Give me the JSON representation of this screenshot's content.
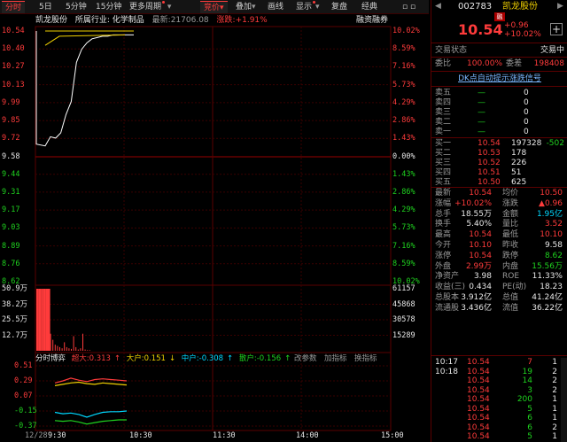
{
  "toolbar": {
    "tabs": [
      "分时",
      "5日",
      "5分钟",
      "15分钟",
      "更多周期",
      "竞价",
      "叠加",
      "画线",
      "显示",
      "复盘",
      "经典"
    ]
  },
  "stock": {
    "name": "凯龙股份",
    "code": "002783",
    "industry": "所属行业: 化学制品",
    "latest": "最新:21706.08",
    "change": "涨跌:+1.91%",
    "link": "融资融券",
    "badge": "融",
    "price": "10.54",
    "delta": "+0.96",
    "pct": "+10.02%"
  },
  "price_axis": {
    "left": [
      "10.54",
      "10.40",
      "10.27",
      "10.13",
      "9.99",
      "9.85",
      "9.72",
      "9.58",
      "9.44",
      "9.31",
      "9.17",
      "9.03",
      "8.89",
      "8.76",
      "8.62"
    ],
    "right": [
      "10.02%",
      "8.59%",
      "7.16%",
      "5.73%",
      "4.29%",
      "2.86%",
      "1.43%",
      "0.00%",
      "1.43%",
      "2.86%",
      "4.29%",
      "5.73%",
      "7.16%",
      "8.59%",
      "10.02%"
    ]
  },
  "volume_axis": {
    "left": [
      "50.9万",
      "38.2万",
      "25.5万",
      "12.7万"
    ],
    "right": [
      "61157",
      "45868",
      "30578",
      "15289"
    ]
  },
  "indicator": {
    "tabs": [
      "分时博弈",
      "改参数",
      "加指标",
      "换指标"
    ],
    "super": "超大:0.313",
    "big": "大户:0.151",
    "mid": "中户:-0.308",
    "small": "散户:-0.156",
    "axis": [
      "0.51",
      "0.29",
      "0.07",
      "-0.15",
      "-0.37"
    ]
  },
  "time_axis": [
    "12/28",
    "9:30",
    "10:30",
    "11:30",
    "14:00",
    "15:00"
  ],
  "panel": {
    "status_label": "交易状态",
    "status_value": "交易中",
    "ratio_label": "委比",
    "ratio_value": "100.00%",
    "diff_label": "委差",
    "diff_value": "198408",
    "signal": "DK点自动提示涨跌信号",
    "asks": [
      {
        "label": "卖五",
        "price": "—",
        "vol": "0"
      },
      {
        "label": "卖四",
        "price": "—",
        "vol": "0"
      },
      {
        "label": "卖三",
        "price": "—",
        "vol": "0"
      },
      {
        "label": "卖二",
        "price": "—",
        "vol": "0"
      },
      {
        "label": "卖一",
        "price": "—",
        "vol": "0"
      }
    ],
    "bids": [
      {
        "label": "买一",
        "price": "10.54",
        "vol": "197328",
        "chg": "-502"
      },
      {
        "label": "买二",
        "price": "10.53",
        "vol": "178",
        "chg": ""
      },
      {
        "label": "买三",
        "price": "10.52",
        "vol": "226",
        "chg": ""
      },
      {
        "label": "买四",
        "price": "10.51",
        "vol": "51",
        "chg": ""
      },
      {
        "label": "买五",
        "price": "10.50",
        "vol": "625",
        "chg": ""
      }
    ],
    "stats": [
      {
        "l1": "最新",
        "v1": "10.54",
        "c1": "red",
        "l2": "均价",
        "v2": "10.50",
        "c2": "red"
      },
      {
        "l1": "涨幅",
        "v1": "+10.02%",
        "c1": "red",
        "l2": "涨跌",
        "v2": "▲0.96",
        "c2": "red"
      },
      {
        "l1": "总手",
        "v1": "18.55万",
        "c1": "white",
        "l2": "金额",
        "v2": "1.95亿",
        "c2": "cyan"
      },
      {
        "l1": "换手",
        "v1": "5.40%",
        "c1": "white",
        "l2": "量比",
        "v2": "3.52",
        "c2": "red"
      },
      {
        "l1": "最高",
        "v1": "10.54",
        "c1": "red",
        "l2": "最低",
        "v2": "10.10",
        "c2": "red"
      },
      {
        "l1": "今开",
        "v1": "10.10",
        "c1": "red",
        "l2": "昨收",
        "v2": "9.58",
        "c2": "white"
      },
      {
        "l1": "涨停",
        "v1": "10.54",
        "c1": "red",
        "l2": "跌停",
        "v2": "8.62",
        "c2": "green"
      },
      {
        "l1": "外盘",
        "v1": "2.99万",
        "c1": "red",
        "l2": "内盘",
        "v2": "15.56万",
        "c2": "green"
      },
      {
        "l1": "净资产",
        "v1": "3.98",
        "c1": "white",
        "l2": "ROE",
        "v2": "11.33%",
        "c2": "white"
      },
      {
        "l1": "收益(三)",
        "v1": "0.434",
        "c1": "white",
        "l2": "PE(动)",
        "v2": "18.23",
        "c2": "white"
      },
      {
        "l1": "总股本",
        "v1": "3.912亿",
        "c1": "white",
        "l2": "总值",
        "v2": "41.24亿",
        "c2": "white"
      },
      {
        "l1": "流通股",
        "v1": "3.436亿",
        "c1": "white",
        "l2": "流值",
        "v2": "36.22亿",
        "c2": "white"
      }
    ],
    "ticks": [
      {
        "time": "10:17",
        "price": "10.54",
        "vol": "7",
        "n": "1",
        "vc": "red"
      },
      {
        "time": "10:18",
        "price": "10.54",
        "vol": "19",
        "n": "2",
        "vc": "green"
      },
      {
        "time": "",
        "price": "10.54",
        "vol": "14",
        "n": "2",
        "vc": "green"
      },
      {
        "time": "",
        "price": "10.54",
        "vol": "3",
        "n": "2",
        "vc": "green"
      },
      {
        "time": "",
        "price": "10.54",
        "vol": "200",
        "n": "1",
        "vc": "green"
      },
      {
        "time": "",
        "price": "10.54",
        "vol": "5",
        "n": "1",
        "vc": "green"
      },
      {
        "time": "",
        "price": "10.54",
        "vol": "6",
        "n": "1",
        "vc": "green"
      },
      {
        "time": "",
        "price": "10.54",
        "vol": "6",
        "n": "2",
        "vc": "green"
      },
      {
        "time": "",
        "price": "10.54",
        "vol": "5",
        "n": "1",
        "vc": "green"
      }
    ]
  },
  "chart_data": {
    "type": "line",
    "series": [
      {
        "values": [
          9.66,
          9.73,
          9.72,
          9.76,
          9.9,
          10.0,
          10.3,
          10.4,
          10.45,
          10.48,
          10.49,
          10.5,
          10.5,
          10.51,
          10.51,
          10.51,
          10.51,
          10.51
        ]
      },
      {
        "values": [
          10.54,
          10.54,
          10.54,
          10.54,
          10.54,
          10.54,
          10.54,
          10.54,
          10.54,
          10.54,
          10.54,
          10.54,
          10.54,
          10.54,
          10.54,
          10.54,
          10.54,
          10.54
        ]
      }
    ],
    "ylim": [
      8.62,
      10.54
    ],
    "volume": [
      509000,
      509000,
      509000,
      509000,
      509000,
      509000,
      140000,
      90000,
      50000,
      40000,
      30000,
      20000,
      70000,
      30000,
      20000,
      15000,
      120000,
      30000,
      10000,
      20000,
      140000,
      10000,
      5000,
      5000
    ],
    "indicator_series": [
      {
        "values": [
          0.26,
          0.29,
          0.33,
          0.3,
          0.28,
          0.31,
          0.32,
          0.31,
          0.3,
          0.29
        ]
      },
      {
        "values": [
          0.22,
          0.24,
          0.26,
          0.27,
          0.25,
          0.24,
          0.26,
          0.25,
          0.24,
          0.23
        ]
      },
      {
        "values": [
          -0.17,
          -0.19,
          -0.18,
          -0.2,
          -0.24,
          -0.2,
          -0.17,
          -0.16,
          -0.16,
          -0.15
        ]
      },
      {
        "values": [
          -0.29,
          -0.3,
          -0.29,
          -0.31,
          -0.34,
          -0.32,
          -0.3,
          -0.29,
          -0.28,
          -0.28
        ]
      }
    ]
  }
}
